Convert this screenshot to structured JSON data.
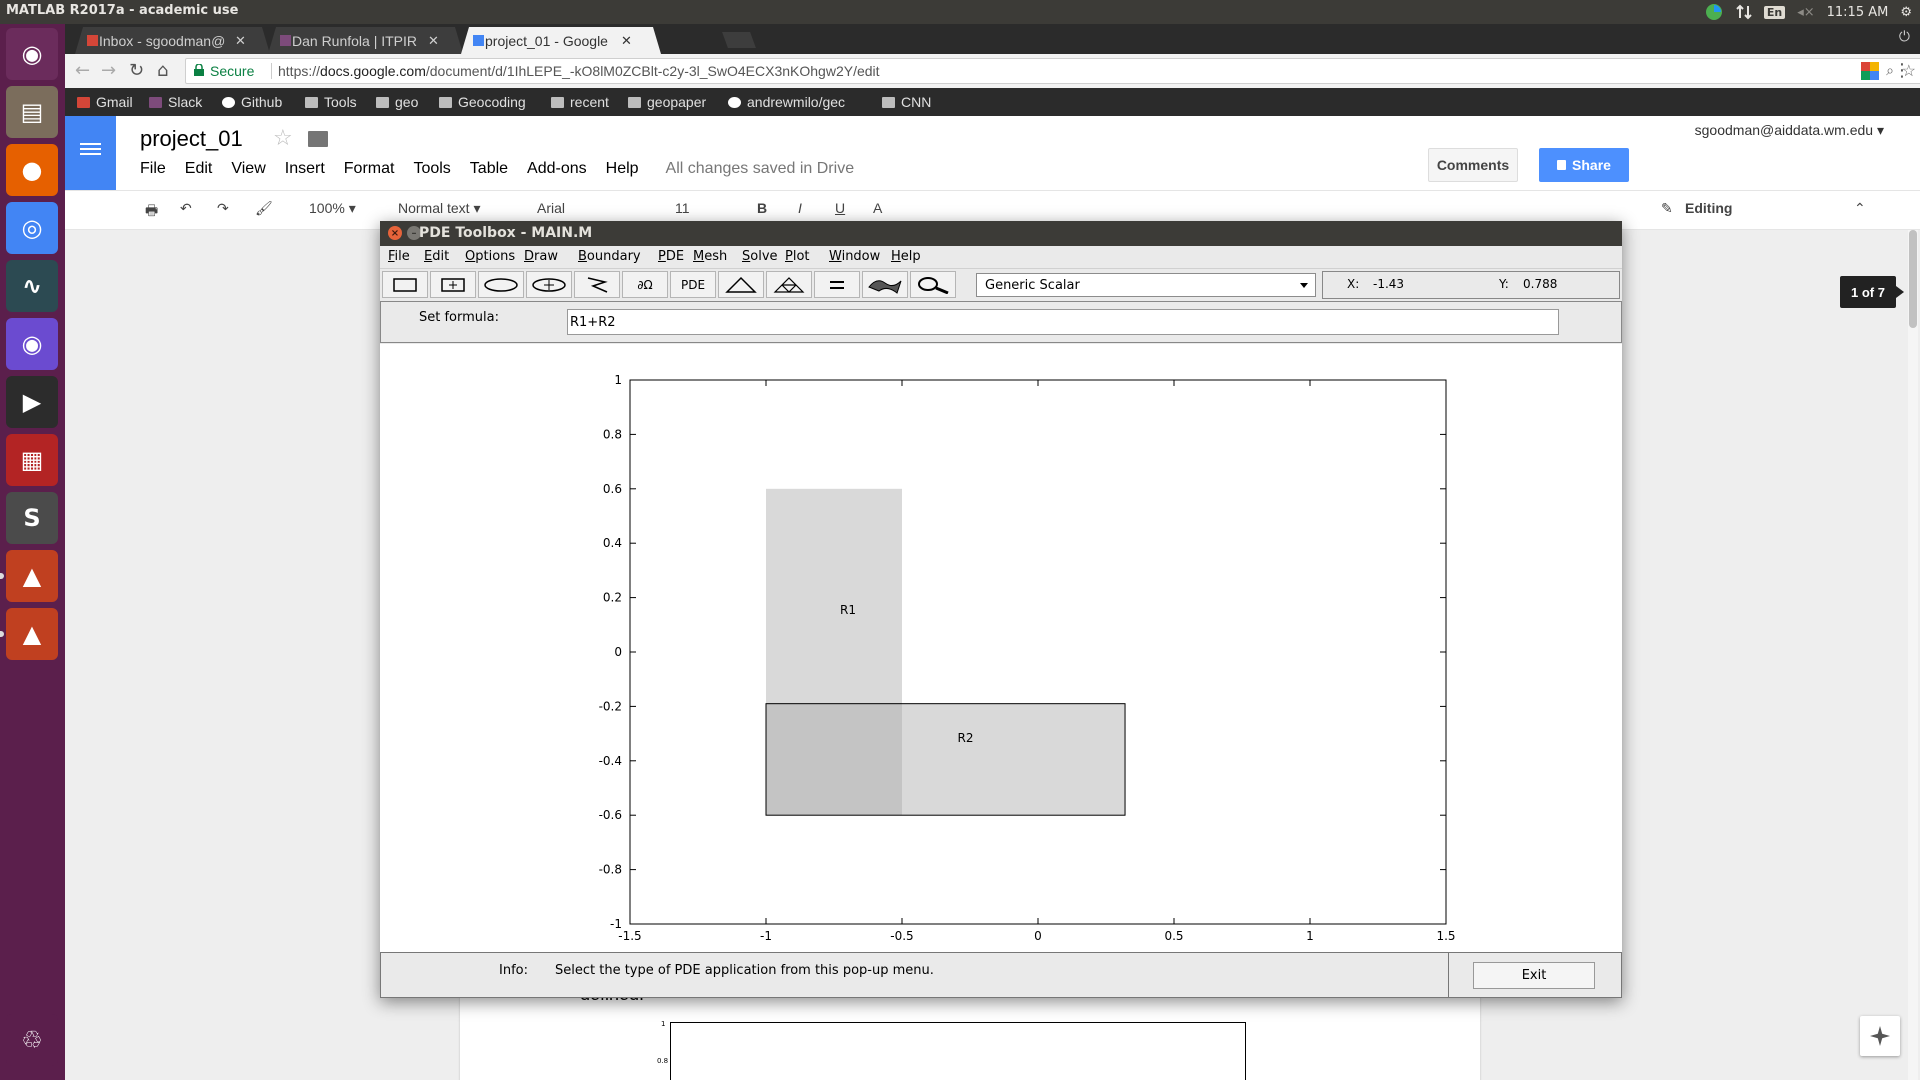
{
  "system": {
    "window_title": "MATLAB R2017a - academic use",
    "keyboard_lang": "En",
    "clock": "11:15 AM"
  },
  "launcher": {
    "apps": [
      {
        "name": "Dash",
        "color": "#6b2c5c"
      },
      {
        "name": "Files",
        "color": "#7b6d5c"
      },
      {
        "name": "Firefox",
        "color": "#e66000"
      },
      {
        "name": "Chrome",
        "color": "#4285f4"
      },
      {
        "name": "System Monitor",
        "color": "#2c4a52"
      },
      {
        "name": "Chromium",
        "color": "#6b4bd0"
      },
      {
        "name": "Terminal",
        "color": "#2c2c2c"
      },
      {
        "name": "Screen",
        "color": "#b32424"
      },
      {
        "name": "Sublime Text",
        "color": "#4b4b4b"
      },
      {
        "name": "MATLAB",
        "color": "#c04020"
      },
      {
        "name": "MATLAB",
        "color": "#c04020"
      },
      {
        "name": "Trash",
        "color": "#5b1f4c"
      }
    ]
  },
  "chrome": {
    "tabs": [
      {
        "label": "Inbox - sgoodman@",
        "favicon_color": "#d44638",
        "active": false
      },
      {
        "label": "Dan Runfola | ITPIR",
        "favicon_color": "#7d4b7b",
        "active": false
      },
      {
        "label": "project_01 - Google",
        "favicon_color": "#4285f4",
        "active": true
      }
    ],
    "omnibox": {
      "secure_label": "Secure",
      "url_prefix": "https://",
      "url_host": "docs.google.com",
      "url_path": "/document/d/1IhLEPE_-kO8lM0ZCBlt-c2y-3l_SwO4ECX3nKOhgw2Y/edit"
    },
    "bookmarks": [
      {
        "label": "Gmail",
        "icon": "gmail-icon"
      },
      {
        "label": "Slack",
        "icon": "slack-icon"
      },
      {
        "label": "Github",
        "icon": "github-icon"
      },
      {
        "label": "Tools",
        "icon": "folder-icon"
      },
      {
        "label": "geo",
        "icon": "folder-icon"
      },
      {
        "label": "Geocoding",
        "icon": "folder-icon"
      },
      {
        "label": "recent",
        "icon": "folder-icon"
      },
      {
        "label": "geopaper",
        "icon": "folder-icon"
      },
      {
        "label": "andrewmilo/gec",
        "icon": "github-icon"
      },
      {
        "label": "CNN",
        "icon": "folder-icon"
      }
    ]
  },
  "docs": {
    "title": "project_01",
    "menu": [
      "File",
      "Edit",
      "View",
      "Insert",
      "Format",
      "Tools",
      "Table",
      "Add-ons",
      "Help"
    ],
    "saved_status": "All changes saved in Drive",
    "account": "sgoodman@aiddata.wm.edu",
    "comments_label": "Comments",
    "share_label": "Share",
    "toolbar": {
      "zoom": "100%",
      "style": "Normal text",
      "font": "Arial",
      "size": "11",
      "mode": "Editing"
    },
    "page_count": "1 of 7",
    "body_text": "defined.",
    "mini_plot_ticks": [
      "1",
      "0.8"
    ]
  },
  "pde": {
    "window_title": "PDE Toolbox - MAIN.M",
    "menu": [
      {
        "label": "File",
        "u": "F",
        "rest": "ile"
      },
      {
        "label": "Edit",
        "u": "E",
        "rest": "dit"
      },
      {
        "label": "Options",
        "u": "O",
        "rest": "ptions"
      },
      {
        "label": "Draw",
        "u": "D",
        "rest": "raw"
      },
      {
        "label": "Boundary",
        "u": "B",
        "rest": "oundary"
      },
      {
        "label": "PDE",
        "u": "P",
        "rest": "DE"
      },
      {
        "label": "Mesh",
        "u": "M",
        "rest": "esh"
      },
      {
        "label": "Solve",
        "u": "S",
        "rest": "olve"
      },
      {
        "label": "Plot",
        "u": "P",
        "rest": "lot"
      },
      {
        "label": "Window",
        "u": "W",
        "rest": "indow"
      },
      {
        "label": "Help",
        "u": "H",
        "rest": "elp"
      }
    ],
    "tool_labels": {
      "boundary": "∂Ω",
      "pde": "PDE"
    },
    "application": "Generic Scalar",
    "coords": {
      "x_label": "X:",
      "x": "-1.43",
      "y_label": "Y:",
      "y": "0.788"
    },
    "formula_label": "Set formula:",
    "formula": "R1+R2",
    "info_label": "Info:",
    "info_text": "Select the type of PDE application from this pop-up menu.",
    "exit_label": "Exit"
  },
  "chart_data": {
    "type": "scatter",
    "title": "",
    "xlabel": "",
    "ylabel": "",
    "xlim": [
      -1.5,
      1.5
    ],
    "ylim": [
      -1,
      1
    ],
    "x_ticks": [
      "-1.5",
      "-1",
      "-0.5",
      "0",
      "0.5",
      "1",
      "1.5"
    ],
    "y_ticks": [
      "1",
      "0.8",
      "0.6",
      "0.4",
      "0.2",
      "0",
      "-0.2",
      "-0.4",
      "-0.6",
      "-0.8",
      "-1"
    ],
    "grid": false,
    "shapes": [
      {
        "name": "R1",
        "xmin": -1.0,
        "xmax": -0.5,
        "ymin": -0.6,
        "ymax": 0.6,
        "fill": "#d9d9d9"
      },
      {
        "name": "R2",
        "xmin": -1.0,
        "xmax": 0.32,
        "ymin": -0.6,
        "ymax": -0.19,
        "fill": "#d9d9d9"
      }
    ],
    "overlap_fill": "#c4c4c4"
  }
}
